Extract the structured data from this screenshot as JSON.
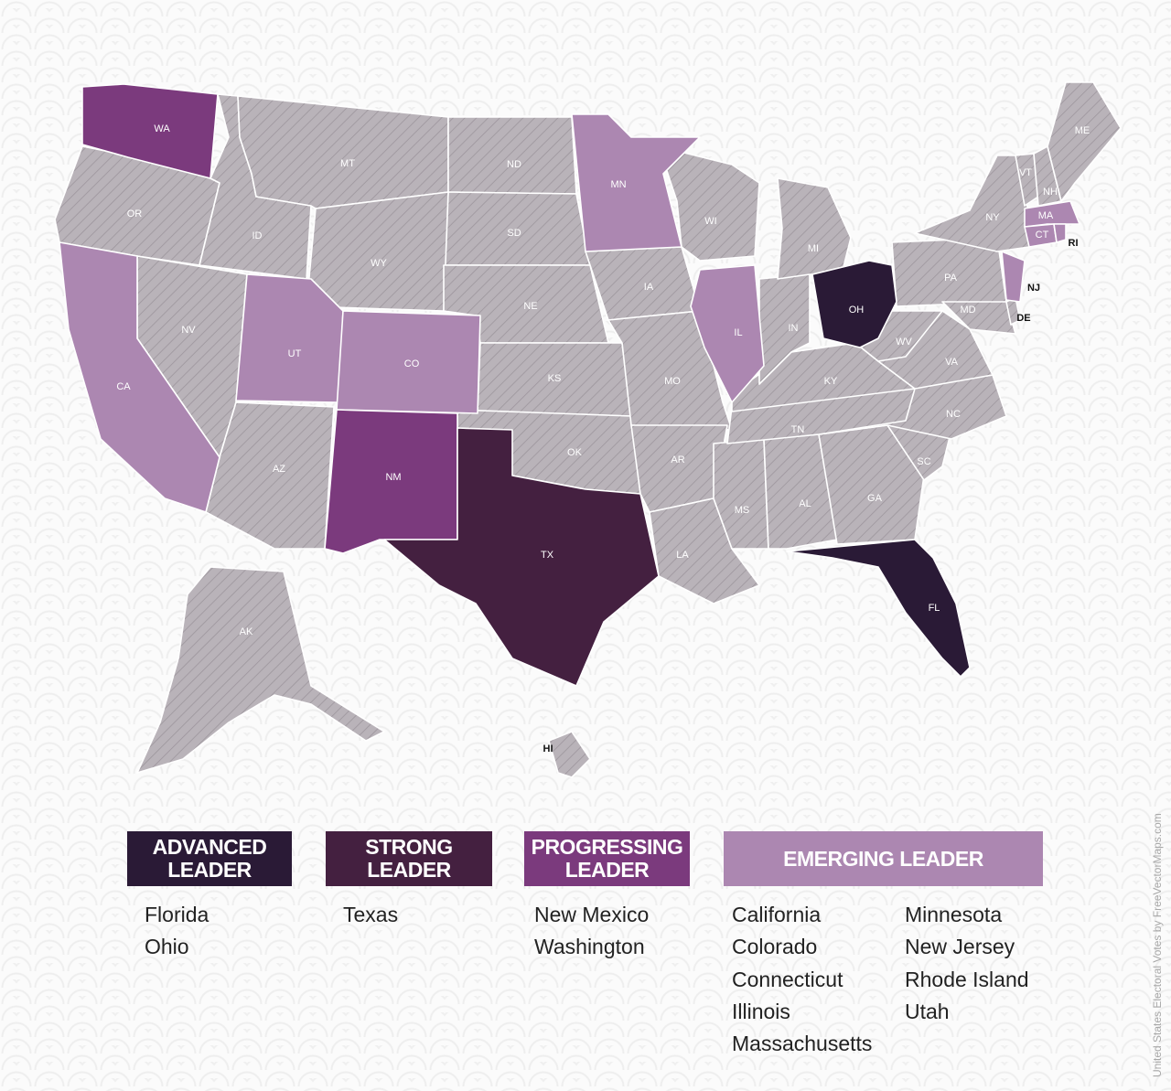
{
  "map": {
    "colors": {
      "advanced": "#2a1a36",
      "strong": "#442040",
      "progressing": "#7b3a7d",
      "emerging": "#ac87b1",
      "none": "#b6b0b6"
    },
    "state_labels": [
      "WA",
      "MT",
      "ND",
      "MN",
      "OR",
      "ID",
      "SD",
      "WY",
      "NV",
      "CA",
      "UT",
      "CO",
      "NE",
      "IA",
      "WI",
      "MI",
      "IL",
      "IN",
      "OH",
      "PA",
      "NY",
      "VT",
      "NH",
      "ME",
      "MA",
      "CT",
      "RI",
      "NJ",
      "DE",
      "MD",
      "WV",
      "VA",
      "KY",
      "KS",
      "MO",
      "OK",
      "AR",
      "TN",
      "NC",
      "SC",
      "GA",
      "AL",
      "MS",
      "LA",
      "TX",
      "NM",
      "AZ",
      "FL",
      "AK",
      "HI"
    ]
  },
  "legend": [
    {
      "label_line1": "ADVANCED",
      "label_line2": "LEADER",
      "color": "#2a1a36",
      "states": [
        "Florida",
        "Ohio"
      ]
    },
    {
      "label_line1": "STRONG",
      "label_line2": "LEADER",
      "color": "#442040",
      "states": [
        "Texas"
      ]
    },
    {
      "label_line1": "PROGRESSING",
      "label_line2": "LEADER",
      "color": "#7b3a7d",
      "states": [
        "New Mexico",
        "Washington"
      ]
    },
    {
      "label_line1": "EMERGING LEADER",
      "color": "#ac87b1",
      "states_col1": [
        "California",
        "Colorado",
        "Connecticut",
        "Illinois",
        "Massachusetts"
      ],
      "states_col2": [
        "Minnesota",
        "New Jersey",
        "Rhode Island",
        "Utah"
      ]
    }
  ],
  "credit": "United States Electoral Votes by FreeVectorMaps.com"
}
